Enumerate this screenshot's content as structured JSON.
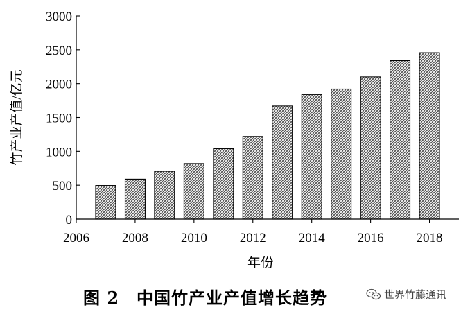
{
  "chart_data": {
    "type": "bar",
    "x": [
      2007,
      2008,
      2009,
      2010,
      2011,
      2012,
      2013,
      2014,
      2015,
      2016,
      2017,
      2018
    ],
    "values": [
      496,
      590,
      705,
      820,
      1040,
      1220,
      1670,
      1840,
      1920,
      2100,
      2340,
      2456
    ],
    "xlabel": "年份",
    "ylabel": "竹产业产值/亿元",
    "xlim": [
      2006,
      2019
    ],
    "ylim": [
      0,
      3000
    ],
    "xticks": [
      2006,
      2008,
      2010,
      2012,
      2014,
      2016,
      2018
    ],
    "yticks": [
      0,
      500,
      1000,
      1500,
      2000,
      2500,
      3000
    ],
    "grid": false,
    "bar_pattern": "crosshatch"
  },
  "caption": {
    "title": "图 2　中国竹产业产值增长趋势"
  },
  "watermark": {
    "text": "世界竹藤通讯",
    "icon": "wechat-icon"
  }
}
